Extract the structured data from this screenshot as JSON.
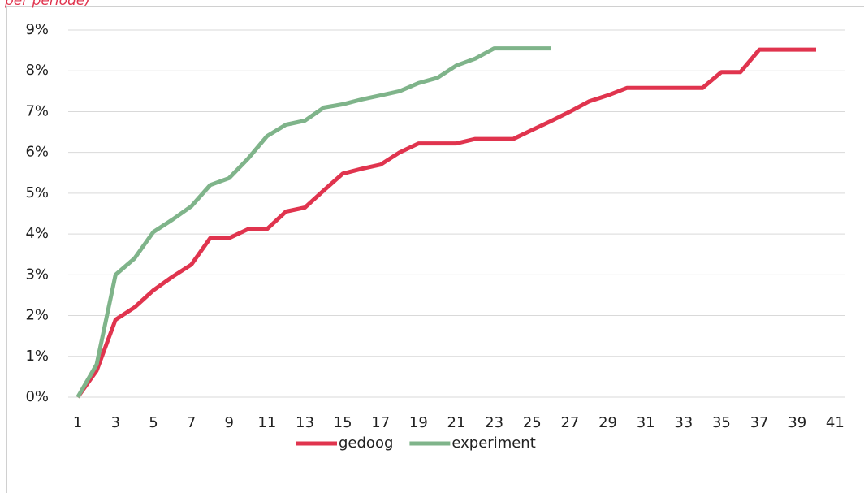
{
  "chart_data": {
    "type": "line",
    "subtitle": "per periode)",
    "categories": [
      1,
      null,
      3,
      null,
      5,
      null,
      7,
      null,
      9,
      null,
      11,
      null,
      13,
      null,
      15,
      null,
      17,
      null,
      19,
      null,
      21,
      null,
      23,
      null,
      25,
      null,
      27,
      null,
      29,
      null,
      31,
      null,
      33,
      null,
      35,
      null,
      37,
      null,
      39,
      null,
      41
    ],
    "series": [
      {
        "name": "gedoog",
        "color": "#e0344e",
        "values": [
          0,
          0.65,
          1.9,
          2.2,
          2.62,
          2.95,
          3.25,
          3.9,
          3.9,
          4.12,
          4.12,
          4.55,
          4.65,
          5.07,
          5.48,
          5.6,
          5.7,
          6.0,
          6.22,
          6.22,
          6.22,
          6.33,
          6.33,
          6.33,
          6.55,
          6.77,
          7.0,
          7.25,
          7.4,
          7.58,
          7.58,
          7.58,
          7.58,
          7.58,
          7.97,
          7.97,
          8.52,
          8.52,
          8.52,
          8.52,
          null
        ]
      },
      {
        "name": "experiment",
        "color": "#7fb48a",
        "values": [
          0,
          0.8,
          3.0,
          3.4,
          4.05,
          4.35,
          4.68,
          5.2,
          5.37,
          5.85,
          6.4,
          6.68,
          6.78,
          7.1,
          7.18,
          7.3,
          7.4,
          7.5,
          7.7,
          7.83,
          8.13,
          8.3,
          8.55,
          8.55,
          8.55,
          8.55,
          null,
          null,
          null,
          null,
          null,
          null,
          null,
          null,
          null,
          null,
          null,
          null,
          null,
          null,
          null
        ]
      }
    ],
    "ylim": [
      0,
      9
    ],
    "yticks": [
      {
        "value": 0,
        "label": "0%"
      },
      {
        "value": 1,
        "label": "1%"
      },
      {
        "value": 2,
        "label": "2%"
      },
      {
        "value": 3,
        "label": "3%"
      },
      {
        "value": 4,
        "label": "4%"
      },
      {
        "value": 5,
        "label": "5%"
      },
      {
        "value": 6,
        "label": "6%"
      },
      {
        "value": 7,
        "label": "7%"
      },
      {
        "value": 8,
        "label": "8%"
      },
      {
        "value": 9,
        "label": "9%"
      }
    ],
    "grid": true,
    "legend": "bottom"
  }
}
